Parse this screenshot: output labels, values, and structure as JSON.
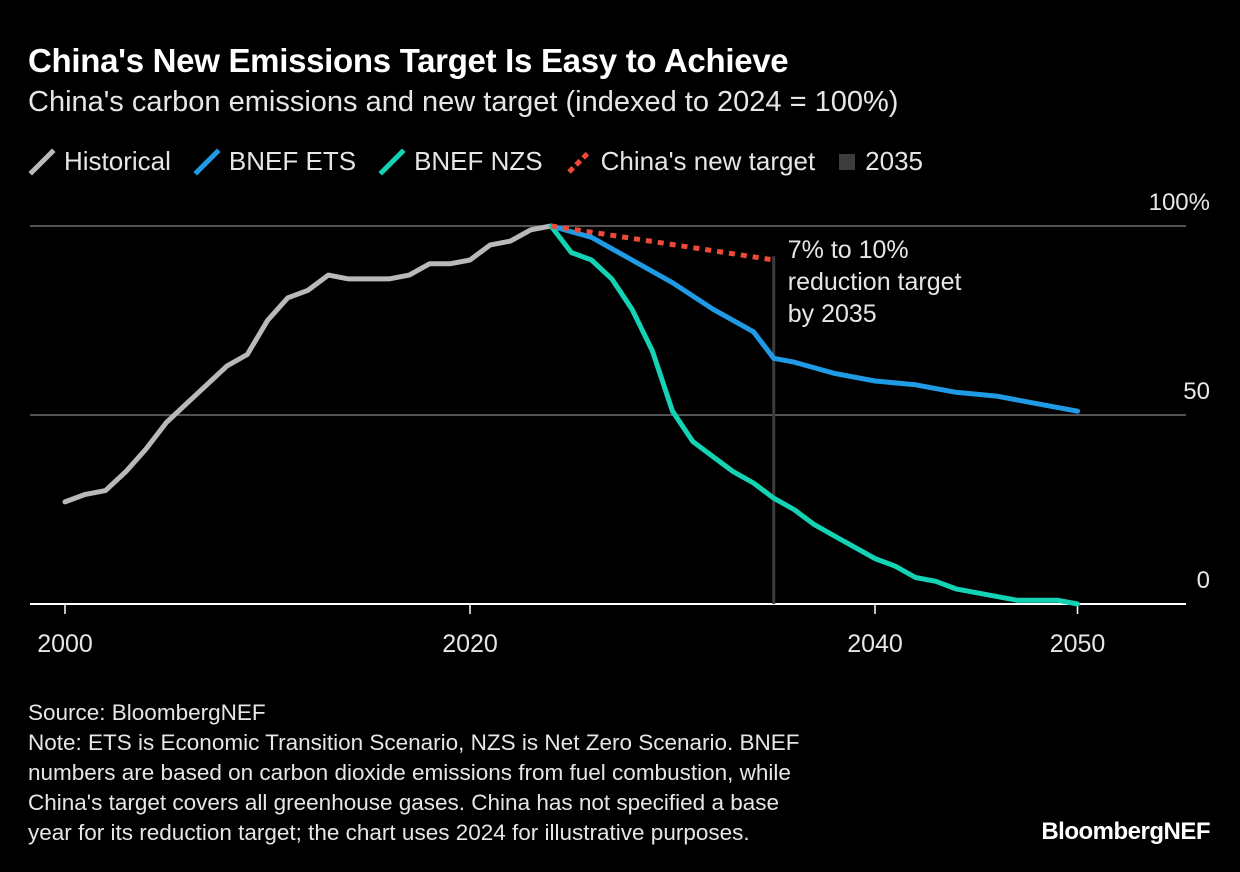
{
  "title": "China's New Emissions Target Is Easy to Achieve",
  "subtitle": "China's carbon emissions and new target (indexed to 2024 = 100%)",
  "legend": [
    {
      "label": "Historical",
      "color": "#b9b9b9",
      "style": "solid"
    },
    {
      "label": "BNEF ETS",
      "color": "#1f9be6",
      "style": "solid"
    },
    {
      "label": "BNEF NZS",
      "color": "#14d2b4",
      "style": "solid"
    },
    {
      "label": "China's new target",
      "color": "#ee4a3b",
      "style": "dashed"
    },
    {
      "label": "2035",
      "color": "#3c3c3c",
      "style": "square"
    }
  ],
  "chart_data": {
    "type": "line",
    "xlim": [
      1999,
      2053
    ],
    "ylim": [
      0,
      100
    ],
    "x_ticks": [
      2000,
      2020,
      2040,
      2050
    ],
    "y_ticks": [
      {
        "value": 100,
        "label": "100%"
      },
      {
        "value": 50,
        "label": "50"
      },
      {
        "value": 0,
        "label": "0"
      }
    ],
    "grid": true,
    "marker_line": {
      "x": 2035,
      "label": "2035",
      "color": "#3c3c3c"
    },
    "annotation": {
      "lines": [
        "7% to 10%",
        "reduction target",
        "by 2035"
      ]
    },
    "series": [
      {
        "name": "Historical",
        "color": "#b9b9b9",
        "dashed": false,
        "x": [
          2000,
          2001,
          2002,
          2003,
          2004,
          2005,
          2006,
          2007,
          2008,
          2009,
          2010,
          2011,
          2012,
          2013,
          2014,
          2015,
          2016,
          2017,
          2018,
          2019,
          2020,
          2021,
          2022,
          2023,
          2024
        ],
        "y": [
          27,
          29,
          30,
          35,
          41,
          48,
          53,
          58,
          63,
          66,
          75,
          81,
          83,
          87,
          86,
          86,
          86,
          87,
          90,
          90,
          91,
          95,
          96,
          99,
          100
        ]
      },
      {
        "name": "BNEF ETS",
        "color": "#1f9be6",
        "dashed": false,
        "x": [
          2024,
          2026,
          2028,
          2030,
          2032,
          2034,
          2035,
          2036,
          2038,
          2040,
          2042,
          2044,
          2046,
          2048,
          2049,
          2050
        ],
        "y": [
          100,
          97,
          91,
          85,
          78,
          72,
          65,
          64,
          61,
          59,
          58,
          56,
          55,
          53,
          52,
          51
        ]
      },
      {
        "name": "BNEF NZS",
        "color": "#14d2b4",
        "dashed": false,
        "x": [
          2024,
          2025,
          2026,
          2027,
          2028,
          2029,
          2030,
          2031,
          2032,
          2033,
          2034,
          2035,
          2036,
          2037,
          2038,
          2039,
          2040,
          2041,
          2042,
          2043,
          2044,
          2045,
          2046,
          2047,
          2048,
          2049,
          2050
        ],
        "y": [
          100,
          93,
          91,
          86,
          78,
          67,
          51,
          43,
          39,
          35,
          32,
          28,
          25,
          21,
          18,
          15,
          12,
          10,
          7,
          6,
          4,
          3,
          2,
          1,
          1,
          1,
          0
        ]
      },
      {
        "name": "China's new target",
        "color": "#ee4a3b",
        "dashed": true,
        "x": [
          2024,
          2035
        ],
        "y": [
          100,
          91
        ]
      }
    ]
  },
  "footer": {
    "source": "Source: BloombergNEF",
    "note_lines": [
      "Note: ETS is Economic Transition Scenario, NZS is Net Zero Scenario. BNEF",
      "numbers are based on carbon dioxide emissions from fuel combustion, while",
      "China's target covers all greenhouse gases. China has not specified a base",
      "year for its reduction target; the chart uses 2024 for illustrative purposes."
    ]
  },
  "brand": "BloombergNEF"
}
